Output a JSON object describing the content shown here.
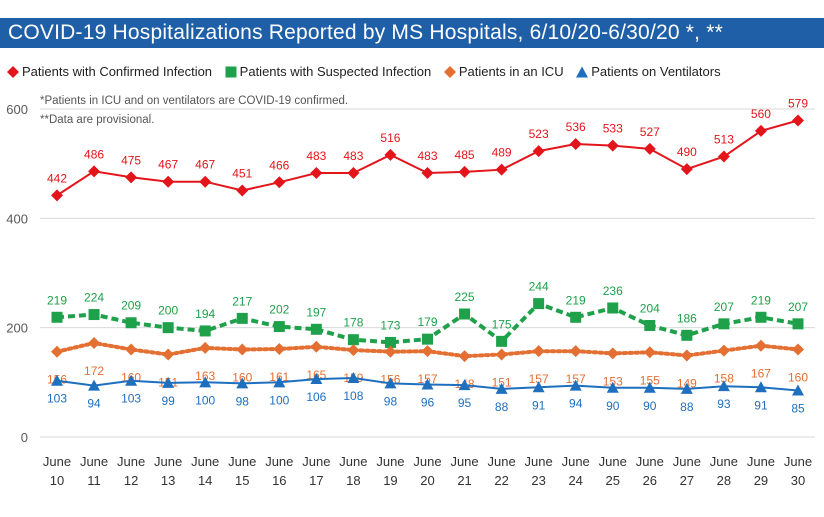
{
  "title": "COVID-19 Hospitalizations Reported by MS Hospitals, 6/10/20-6/30/20 *, **",
  "notes": [
    "*Patients in ICU and on ventilators are COVID-19 confirmed.",
    "**Data are provisional."
  ],
  "colors": {
    "title_bg": "#1f5fa8",
    "confirmed": "#e3151b",
    "suspected": "#1ea14a",
    "icu": "#e36f32",
    "ventilators": "#1f6fbf"
  },
  "chart_data": {
    "type": "line",
    "categories": [
      [
        "June",
        "10"
      ],
      [
        "June",
        "11"
      ],
      [
        "June",
        "12"
      ],
      [
        "June",
        "13"
      ],
      [
        "June",
        "14"
      ],
      [
        "June",
        "15"
      ],
      [
        "June",
        "16"
      ],
      [
        "June",
        "17"
      ],
      [
        "June",
        "18"
      ],
      [
        "June",
        "19"
      ],
      [
        "June",
        "20"
      ],
      [
        "June",
        "21"
      ],
      [
        "June",
        "22"
      ],
      [
        "June",
        "23"
      ],
      [
        "June",
        "24"
      ],
      [
        "June",
        "25"
      ],
      [
        "June",
        "26"
      ],
      [
        "June",
        "27"
      ],
      [
        "June",
        "28"
      ],
      [
        "June",
        "29"
      ],
      [
        "June",
        "30"
      ]
    ],
    "ylim": [
      0,
      600
    ],
    "yticks": [
      "0",
      "200",
      "400",
      "600"
    ],
    "grid": true,
    "legend_position": "top",
    "series": [
      {
        "name": "Patients with Confirmed Infection",
        "marker": "diamond",
        "style": "solid",
        "color": "#e3151b",
        "values": [
          442,
          486,
          475,
          467,
          467,
          451,
          466,
          483,
          483,
          516,
          483,
          485,
          489,
          523,
          536,
          533,
          527,
          490,
          513,
          560,
          579
        ]
      },
      {
        "name": "Patients with Suspected Infection",
        "marker": "square",
        "style": "dashed",
        "color": "#1ea14a",
        "values": [
          219,
          224,
          209,
          200,
          194,
          217,
          202,
          197,
          178,
          173,
          179,
          225,
          175,
          244,
          219,
          236,
          204,
          186,
          207,
          219,
          207
        ]
      },
      {
        "name": "Patients in an ICU",
        "marker": "diamond",
        "style": "dotted",
        "color": "#e36f32",
        "values": [
          156,
          172,
          160,
          151,
          163,
          160,
          161,
          165,
          159,
          156,
          157,
          148,
          151,
          157,
          157,
          153,
          155,
          149,
          158,
          167,
          160
        ]
      },
      {
        "name": "Patients on Ventilators",
        "marker": "triangle",
        "style": "solid",
        "color": "#1f6fbf",
        "values": [
          103,
          94,
          103,
          99,
          100,
          98,
          100,
          106,
          108,
          98,
          96,
          95,
          88,
          91,
          94,
          90,
          90,
          88,
          93,
          91,
          85
        ]
      }
    ]
  }
}
